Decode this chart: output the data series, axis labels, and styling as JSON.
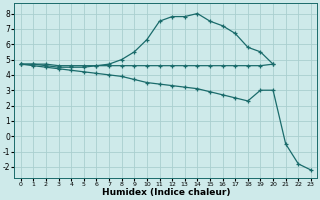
{
  "xlabel": "Humidex (Indice chaleur)",
  "background_color": "#ceeaea",
  "line_color": "#1a6b6b",
  "grid_color": "#aacfcf",
  "xlim": [
    -0.5,
    23.5
  ],
  "ylim": [
    -2.7,
    8.7
  ],
  "xticks": [
    0,
    1,
    2,
    3,
    4,
    5,
    6,
    7,
    8,
    9,
    10,
    11,
    12,
    13,
    14,
    15,
    16,
    17,
    18,
    19,
    20,
    21,
    22,
    23
  ],
  "yticks": [
    -2,
    -1,
    0,
    1,
    2,
    3,
    4,
    5,
    6,
    7,
    8
  ],
  "line1_x": [
    0,
    1,
    2,
    3,
    4,
    5,
    6,
    7,
    8,
    9,
    10,
    11,
    12,
    13,
    14,
    15,
    16,
    17,
    18,
    19,
    20
  ],
  "line1_y": [
    4.7,
    4.7,
    4.6,
    4.5,
    4.5,
    4.5,
    4.6,
    4.7,
    5.0,
    5.5,
    6.3,
    7.5,
    7.8,
    7.8,
    8.0,
    7.5,
    7.2,
    6.7,
    5.8,
    5.5,
    4.7
  ],
  "line2_x": [
    0,
    1,
    2,
    3,
    4,
    5,
    6,
    7,
    8,
    9,
    10,
    11,
    12,
    13,
    14,
    15,
    16,
    17,
    18,
    19,
    20
  ],
  "line2_y": [
    4.7,
    4.7,
    4.7,
    4.6,
    4.6,
    4.6,
    4.6,
    4.6,
    4.6,
    4.6,
    4.6,
    4.6,
    4.6,
    4.6,
    4.6,
    4.6,
    4.6,
    4.6,
    4.6,
    4.6,
    4.7
  ],
  "line3_x": [
    0,
    1,
    2,
    3,
    4,
    5,
    6,
    7,
    8,
    9,
    10,
    11,
    12,
    13,
    14,
    15,
    16,
    17,
    18,
    19,
    20,
    21,
    22,
    23
  ],
  "line3_y": [
    4.7,
    4.6,
    4.5,
    4.4,
    4.3,
    4.2,
    4.1,
    4.0,
    3.9,
    3.7,
    3.5,
    3.4,
    3.3,
    3.2,
    3.1,
    2.9,
    2.7,
    2.5,
    2.3,
    3.0,
    3.0,
    -0.5,
    -1.8,
    -2.2
  ]
}
